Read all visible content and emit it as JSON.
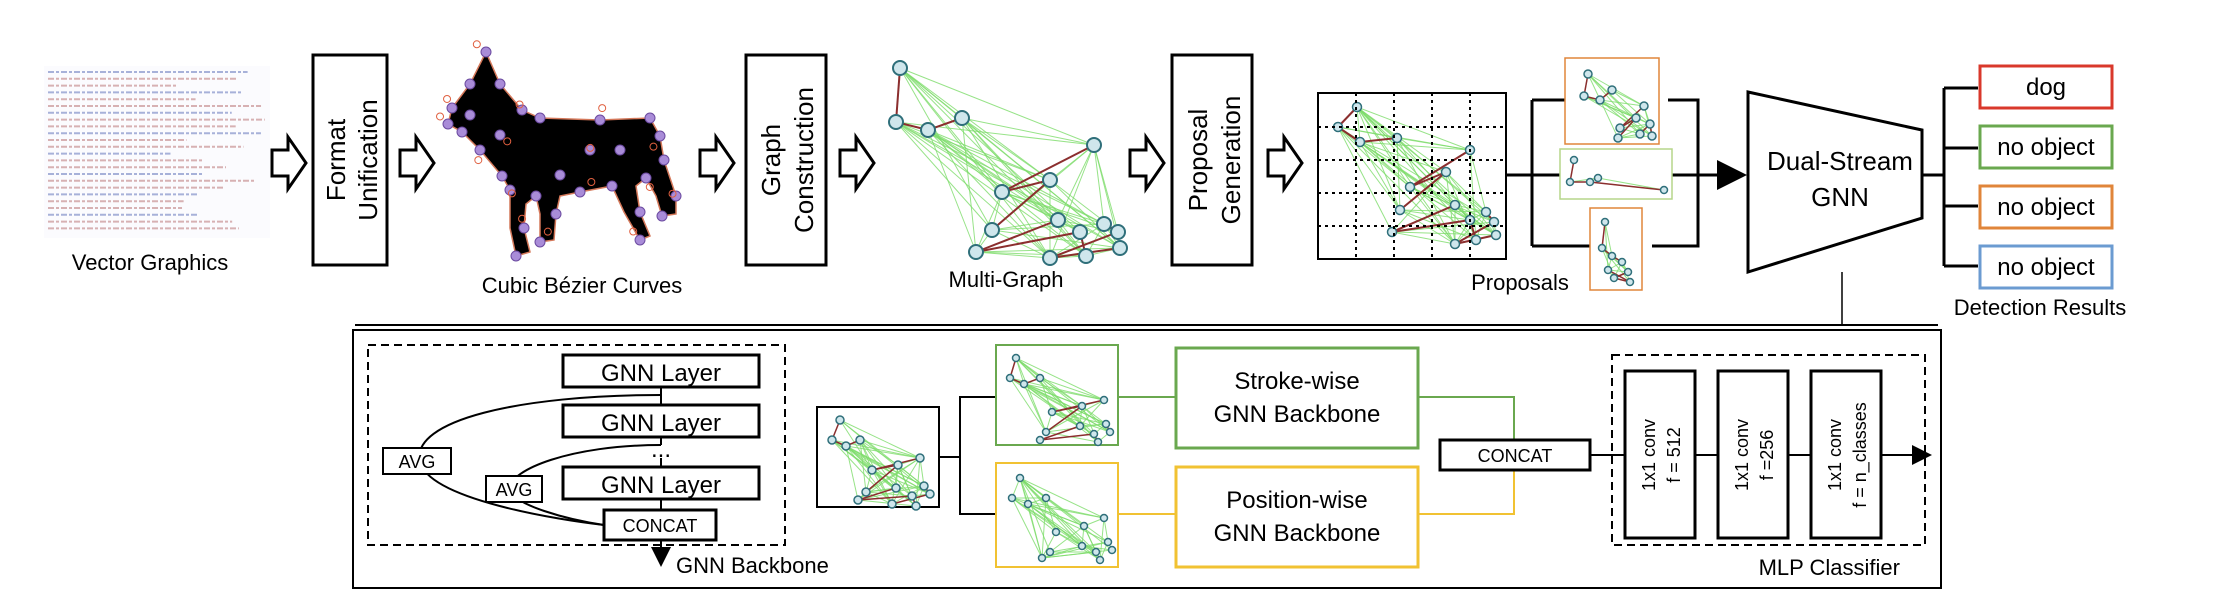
{
  "pipeline": {
    "vector_graphics_label": "Vector Graphics",
    "format_unification": [
      "Format",
      "Unification"
    ],
    "bezier_label": "Cubic Bézier Curves",
    "graph_construction": [
      "Graph",
      "Construction"
    ],
    "multigraph_label": "Multi-Graph",
    "proposal_generation": [
      "Proposal",
      "Generation"
    ],
    "proposals_label": "Proposals",
    "dual_stream": [
      "Dual-Stream",
      "GNN"
    ],
    "results": [
      {
        "label": "dog",
        "color": "#d9382b"
      },
      {
        "label": "no object",
        "color": "#6aa84f"
      },
      {
        "label": "no object",
        "color": "#e0853a"
      },
      {
        "label": "no object",
        "color": "#6b9bd1"
      }
    ],
    "detection_results_label": "Detection Results"
  },
  "backbone": {
    "layers": [
      "GNN Layer",
      "GNN Layer",
      "GNN Layer"
    ],
    "ellipsis": "...",
    "avg": [
      "AVG",
      "AVG"
    ],
    "concat": "CONCAT",
    "title": "GNN Backbone"
  },
  "streams": {
    "stroke": [
      "Stroke-wise",
      "GNN Backbone"
    ],
    "position": [
      "Position-wise",
      "GNN Backbone"
    ],
    "concat": "CONCAT",
    "stroke_color": "#6aa84f",
    "position_color": "#f1c232"
  },
  "classifier": {
    "convs": [
      [
        "1x1 conv",
        "f = 512"
      ],
      [
        "1x1 conv",
        "f =256"
      ],
      [
        "1x1 conv",
        "f = n_classes"
      ]
    ],
    "title": "MLP Classifier"
  },
  "colors": {
    "graph_edges": "#7ddc6a",
    "graph_nodes": "#cfe6ec",
    "node_stroke": "#2f6f7a",
    "stroke_edges": "#8b2e2e"
  }
}
